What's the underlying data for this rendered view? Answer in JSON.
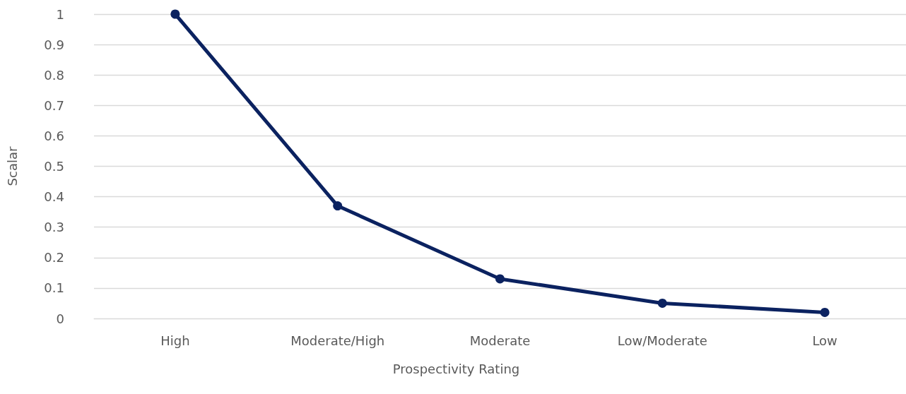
{
  "chart_data": {
    "type": "line",
    "xlabel": "Prospectivity Rating",
    "ylabel": "Scalar",
    "categories": [
      "High",
      "Moderate/High",
      "Moderate",
      "Low/Moderate",
      "Low"
    ],
    "series": [
      {
        "color": "#0b2260",
        "values": [
          1,
          0.37,
          0.13,
          0.05,
          0.02
        ]
      }
    ],
    "ylim": [
      0,
      1
    ],
    "yticks": [
      0,
      0.1,
      0.2,
      0.3,
      0.4,
      0.5,
      0.6,
      0.7,
      0.8,
      0.9,
      1
    ],
    "grid": "y",
    "marker": "circle",
    "line_style": "solid"
  }
}
